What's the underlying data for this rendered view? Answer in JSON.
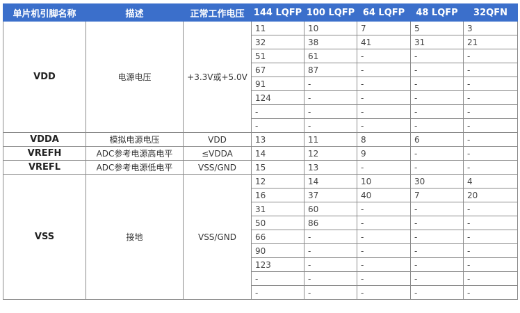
{
  "headers": [
    "单片机引脚名称",
    "描述",
    "正常工作电压",
    "144 LQFP",
    "100 LQFP",
    "64 LQFP",
    "48 LQFP",
    "32QFN"
  ],
  "groups": [
    {
      "name": "VDD",
      "desc": "电源电压",
      "voltage": "+3.3V或+5.0V",
      "rows": [
        [
          "11",
          "10",
          "7",
          "5",
          "3"
        ],
        [
          "32",
          "38",
          "41",
          "31",
          "21"
        ],
        [
          "51",
          "61",
          "-",
          "-",
          "-"
        ],
        [
          "67",
          "87",
          "-",
          "-",
          "-"
        ],
        [
          "91",
          "-",
          "-",
          "-",
          "-"
        ],
        [
          "124",
          "-",
          "-",
          "-",
          "-"
        ],
        [
          "-",
          "-",
          "-",
          "-",
          "-"
        ],
        [
          "-",
          "-",
          "-",
          "-",
          "-"
        ]
      ]
    },
    {
      "name": "VDDA",
      "desc": "模拟电源电压",
      "voltage": "VDD",
      "rows": [
        [
          "13",
          "11",
          "8",
          "6",
          "-"
        ]
      ]
    },
    {
      "name": "VREFH",
      "desc": "ADC参考电源高电平",
      "voltage": "≤VDDA",
      "rows": [
        [
          "14",
          "12",
          "9",
          "-",
          "-"
        ]
      ]
    },
    {
      "name": "VREFL",
      "desc": "ADC参考电源低电平",
      "voltage": "VSS/GND",
      "rows": [
        [
          "15",
          "13",
          "-",
          "-",
          "-"
        ]
      ]
    },
    {
      "name": "VSS",
      "desc": "接地",
      "voltage": "VSS/GND",
      "rows": [
        [
          "12",
          "14",
          "10",
          "30",
          "4"
        ],
        [
          "16",
          "37",
          "40",
          "7",
          "20"
        ],
        [
          "31",
          "60",
          "-",
          "-",
          "-"
        ],
        [
          "50",
          "86",
          "-",
          "-",
          "-"
        ],
        [
          "66",
          "-",
          "-",
          "-",
          "-"
        ],
        [
          "90",
          "-",
          "-",
          "-",
          "-"
        ],
        [
          "123",
          "-",
          "-",
          "-",
          "-"
        ],
        [
          "-",
          "-",
          "-",
          "-",
          "-"
        ],
        [
          "-",
          "-",
          "-",
          "-",
          "-"
        ]
      ]
    }
  ]
}
